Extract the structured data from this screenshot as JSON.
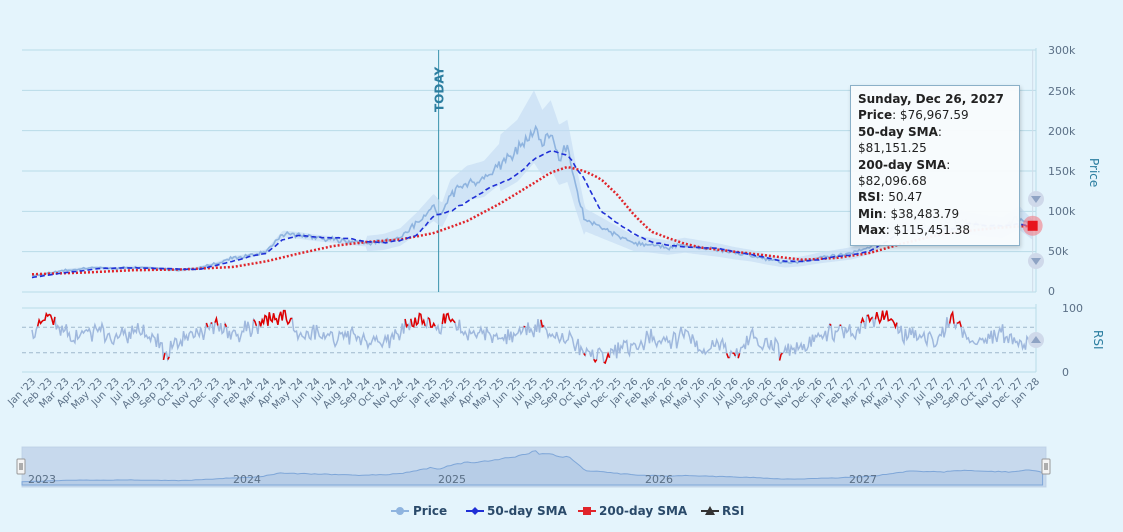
{
  "chart_data": {
    "type": "line",
    "annotation": "TODAY",
    "yaxis_price": {
      "title": "Price",
      "ticks": [
        "0",
        "50k",
        "100k",
        "150k",
        "200k",
        "250k",
        "300k"
      ],
      "range": [
        0,
        300000
      ]
    },
    "yaxis_rsi": {
      "title": "RSI",
      "ticks": [
        "0",
        "100"
      ],
      "range": [
        0,
        100
      ],
      "bands": [
        30,
        70
      ]
    },
    "x_labels": [
      "Jan '23",
      "Feb '23",
      "Mar '23",
      "Apr '23",
      "May '23",
      "Jun '23",
      "Jul '23",
      "Aug '23",
      "Sep '23",
      "Oct '23",
      "Nov '23",
      "Dec '23",
      "Jan '24",
      "Feb '24",
      "Mar '24",
      "Apr '24",
      "May '24",
      "Jun '24",
      "Jul '24",
      "Aug '24",
      "Sep '24",
      "Oct '24",
      "Nov '24",
      "Dec '24",
      "Jan '25",
      "Feb '25",
      "Mar '25",
      "Apr '25",
      "May '25",
      "Jun '25",
      "Jul '25",
      "Aug '25",
      "Sep '25",
      "Oct '25",
      "Nov '25",
      "Dec '25",
      "Jan '26",
      "Feb '26",
      "Mar '26",
      "Apr '26",
      "May '26",
      "Jun '26",
      "Jul '26",
      "Aug '26",
      "Sep '26",
      "Oct '26",
      "Nov '26",
      "Dec '26",
      "Jan '27",
      "Feb '27",
      "Mar '27",
      "Apr '27",
      "May '27",
      "Jun '27",
      "Jul '27",
      "Aug '27",
      "Sep '27",
      "Oct '27",
      "Nov '27",
      "Dec '27",
      "Jan '28"
    ],
    "x_months": [
      0,
      1,
      2,
      3,
      4,
      5,
      6,
      7,
      8,
      9,
      10,
      11,
      12,
      13,
      14,
      15,
      16,
      17,
      18,
      19,
      20,
      21,
      22,
      23,
      24,
      25,
      26,
      27,
      28,
      29,
      30,
      31,
      32,
      33,
      34,
      35,
      36,
      37,
      38,
      39,
      40,
      41,
      42,
      43,
      44,
      45,
      46,
      47,
      48,
      49,
      50,
      51,
      52,
      53,
      54,
      55,
      56,
      57,
      58,
      59,
      60
    ],
    "today_month": 24.3,
    "series": [
      {
        "name": "Price",
        "color": "#8fb4df",
        "x": [
          0,
          1,
          2,
          3,
          4,
          5,
          6,
          7,
          8,
          9,
          10,
          11,
          12,
          13,
          14,
          15,
          16,
          17,
          18,
          19,
          20,
          21,
          22,
          23,
          24,
          24.5,
          25,
          26,
          27,
          28,
          29,
          30,
          30.5,
          31,
          31.5,
          32,
          32.5,
          33,
          34,
          35,
          36,
          37,
          38,
          39,
          40,
          41,
          42,
          43,
          44,
          45,
          46,
          47,
          48,
          49,
          50,
          51,
          52,
          53,
          54,
          55,
          56,
          57,
          58,
          59,
          59.8
        ],
        "values": [
          20000,
          23000,
          27000,
          29000,
          30000,
          29000,
          31000,
          30000,
          28000,
          27000,
          30000,
          35000,
          42000,
          45000,
          50000,
          72000,
          70000,
          67000,
          65000,
          62000,
          60000,
          62000,
          68000,
          85000,
          105000,
          95000,
          120000,
          135000,
          140000,
          160000,
          175000,
          205000,
          185000,
          195000,
          170000,
          175000,
          130000,
          90000,
          80000,
          70000,
          60000,
          58000,
          55000,
          58000,
          55000,
          52000,
          48000,
          45000,
          40000,
          36000,
          38000,
          42000,
          45000,
          48000,
          55000,
          70000,
          85000,
          82000,
          80000,
          90000,
          85000,
          82000,
          80000,
          92000,
          76968
        ]
      },
      {
        "name": "50-day SMA",
        "color": "#1f2fd6",
        "x": [
          0,
          2,
          4,
          6,
          8,
          10,
          12,
          13,
          14,
          15,
          16,
          17,
          18,
          19,
          20,
          21,
          22,
          23,
          24,
          25,
          26,
          27,
          28,
          29,
          30,
          31,
          32,
          33,
          34,
          35,
          36,
          37,
          38,
          39,
          40,
          41,
          42,
          43,
          44,
          45,
          46,
          47,
          48,
          49,
          50,
          51,
          52,
          53,
          54,
          55,
          56,
          57,
          58,
          59,
          59.8
        ],
        "values": [
          18000,
          24000,
          29000,
          30000,
          29000,
          28000,
          38000,
          44000,
          48000,
          65000,
          70000,
          68000,
          67000,
          66000,
          62000,
          61000,
          64000,
          70000,
          95000,
          100000,
          112000,
          125000,
          135000,
          145000,
          165000,
          175000,
          170000,
          140000,
          100000,
          85000,
          72000,
          62000,
          58000,
          56000,
          55000,
          54000,
          50000,
          46000,
          42000,
          38000,
          38000,
          40000,
          44000,
          46000,
          50000,
          62000,
          75000,
          80000,
          78000,
          78000,
          85000,
          83000,
          82000,
          84000,
          81151
        ]
      },
      {
        "name": "200-day SMA",
        "color": "#e0242a",
        "x": [
          0,
          3,
          6,
          9,
          12,
          14,
          16,
          18,
          20,
          22,
          24,
          26,
          28,
          30,
          31,
          32,
          33,
          34,
          35,
          36,
          37,
          38,
          39,
          40,
          42,
          44,
          46,
          48,
          50,
          52,
          54,
          56,
          58,
          59.8
        ],
        "values": [
          22000,
          24000,
          27000,
          28000,
          31000,
          38000,
          48000,
          57000,
          62000,
          65000,
          73000,
          88000,
          110000,
          135000,
          148000,
          155000,
          150000,
          140000,
          120000,
          95000,
          75000,
          67000,
          60000,
          55000,
          50000,
          45000,
          40000,
          42000,
          48000,
          60000,
          70000,
          76000,
          80000,
          82097
        ]
      },
      {
        "name": "RSI",
        "color": "#333333",
        "x": [
          0,
          1,
          2,
          3,
          4,
          5,
          6,
          7,
          8,
          9,
          10,
          11,
          12,
          13,
          14,
          15,
          16,
          17,
          18,
          19,
          20,
          21,
          22,
          23,
          24,
          25,
          26,
          27,
          28,
          29,
          30,
          31,
          32,
          33,
          34,
          35,
          36,
          37,
          38,
          39,
          40,
          41,
          42,
          43,
          44,
          45,
          46,
          47,
          48,
          49,
          50,
          51,
          52,
          53,
          54,
          55,
          56,
          57,
          58,
          59,
          59.8
        ],
        "values": [
          55,
          88,
          60,
          62,
          66,
          50,
          64,
          58,
          28,
          52,
          60,
          72,
          56,
          68,
          78,
          86,
          58,
          60,
          52,
          56,
          50,
          48,
          62,
          88,
          70,
          80,
          55,
          62,
          50,
          58,
          70,
          62,
          52,
          30,
          20,
          34,
          38,
          52,
          42,
          64,
          30,
          44,
          28,
          54,
          46,
          30,
          40,
          55,
          62,
          60,
          85,
          90,
          60,
          55,
          46,
          84,
          52,
          48,
          60,
          44,
          50
        ]
      }
    ]
  },
  "tooltip": {
    "date": "Sunday, Dec 26, 2027",
    "price_label": "Price",
    "price_value": ": $76,967.59",
    "sma50_label": "50-day SMA",
    "sma50_value": ": $81,151.25",
    "sma200_label": "200-day SMA",
    "sma200_value": ": $82,096.68",
    "rsi_label": "RSI",
    "rsi_value": ": 50.47",
    "min_label": "Min",
    "min_value": ": $38,483.79",
    "max_label": "Max",
    "max_value": ": $115,451.38"
  },
  "navigator": {
    "labels": [
      "2023",
      "2024",
      "2025",
      "2026",
      "2027"
    ]
  },
  "legend": {
    "items": [
      "Price",
      "50-day SMA",
      "200-day SMA",
      "RSI"
    ]
  }
}
